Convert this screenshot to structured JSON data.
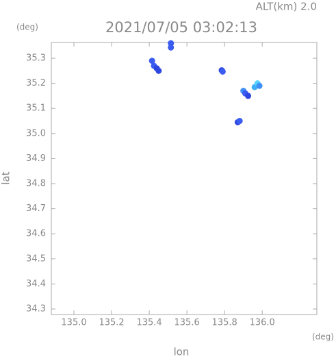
{
  "chart_data": {
    "type": "scatter",
    "altitude_label": "ALT(km) 2.0",
    "title": "2021/07/05 03:02:13",
    "y_unit": "(deg)",
    "x_unit": "(deg)",
    "xlabel": "lon",
    "ylabel": "lat",
    "x": [
      135.415,
      135.425,
      135.44,
      135.45,
      135.515,
      135.515,
      135.785,
      135.79,
      135.9,
      135.91,
      135.925,
      135.96,
      135.975,
      135.985,
      135.87,
      135.88
    ],
    "y": [
      35.29,
      35.27,
      35.26,
      35.25,
      35.36,
      35.343,
      35.252,
      35.247,
      35.17,
      35.16,
      35.15,
      35.185,
      35.2,
      35.19,
      35.045,
      35.05
    ],
    "colors": [
      "#3a5cf0",
      "#3a5cf0",
      "#2d46e0",
      "#2d46e0",
      "#3a5cf0",
      "#3a5cf0",
      "#2d46e0",
      "#3a5cf0",
      "#3f8ef5",
      "#3a5cf0",
      "#2d46e0",
      "#3fb0f8",
      "#55d0ff",
      "#3f8ef5",
      "#2d46e0",
      "#3a5cf0"
    ],
    "xlim": [
      134.88,
      136.29
    ],
    "ylim": [
      34.278,
      35.363
    ],
    "xticks": [
      {
        "value": 135,
        "label": "135.0"
      },
      135.2,
      135.4,
      135.6,
      135.8,
      {
        "value": 136,
        "label": "136.0"
      }
    ],
    "yticks": [
      34.3,
      34.4,
      34.5,
      34.6,
      34.7,
      34.8,
      34.9,
      {
        "value": 35,
        "label": "35.0"
      },
      35.1,
      35.2,
      35.3
    ],
    "axis_color": "#aaaaaa"
  }
}
